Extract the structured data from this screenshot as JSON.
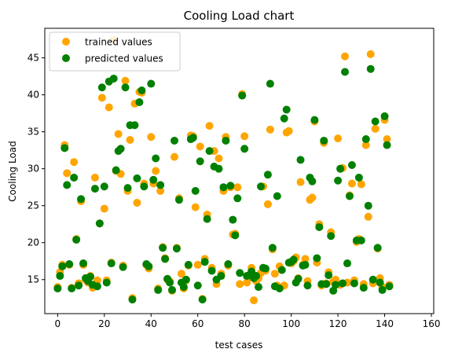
{
  "chart_data": {
    "type": "scatter",
    "title": "Cooling Load chart",
    "xlabel": "test cases",
    "ylabel": "Cooling Load",
    "xlim": [
      -5.5,
      161
    ],
    "ylim": [
      10.4,
      49
    ],
    "xticks": [
      0,
      20,
      40,
      60,
      80,
      100,
      120,
      140,
      160
    ],
    "yticks": [
      15,
      20,
      25,
      30,
      35,
      40,
      45
    ],
    "grid": false,
    "legend_position": "top-left",
    "series": [
      {
        "name": "trained values",
        "color": "#ffa500",
        "points": [
          [
            0,
            14.0
          ],
          [
            1,
            16.0
          ],
          [
            2,
            17.0
          ],
          [
            3,
            33.2
          ],
          [
            4,
            29.4
          ],
          [
            5,
            17.0
          ],
          [
            6,
            13.9
          ],
          [
            7,
            30.9
          ],
          [
            8,
            20.5
          ],
          [
            9,
            14.5
          ],
          [
            10,
            25.6
          ],
          [
            11,
            17.0
          ],
          [
            12,
            15.0
          ],
          [
            13,
            14.6
          ],
          [
            14,
            15.5
          ],
          [
            15,
            13.9
          ],
          [
            16,
            28.8
          ],
          [
            17,
            14.9
          ],
          [
            18,
            22.6
          ],
          [
            19,
            39.6
          ],
          [
            20,
            24.6
          ],
          [
            21,
            14.9
          ],
          [
            22,
            38.3
          ],
          [
            23,
            17.3
          ],
          [
            24,
            47.5
          ],
          [
            25,
            29.7
          ],
          [
            26,
            34.7
          ],
          [
            27,
            29.3
          ],
          [
            28,
            16.9
          ],
          [
            29,
            41.9
          ],
          [
            30,
            27.0
          ],
          [
            31,
            33.9
          ],
          [
            32,
            12.5
          ],
          [
            33,
            38.8
          ],
          [
            34,
            25.4
          ],
          [
            35,
            40.4
          ],
          [
            36,
            40.3
          ],
          [
            37,
            28.0
          ],
          [
            38,
            17.0
          ],
          [
            39,
            16.5
          ],
          [
            40,
            34.3
          ],
          [
            41,
            28.0
          ],
          [
            42,
            29.7
          ],
          [
            43,
            13.8
          ],
          [
            44,
            27.0
          ],
          [
            45,
            19.4
          ],
          [
            46,
            17.9
          ],
          [
            47,
            15.0
          ],
          [
            48,
            14.8
          ],
          [
            49,
            13.5
          ],
          [
            50,
            31.6
          ],
          [
            51,
            19.3
          ],
          [
            52,
            26.0
          ],
          [
            53,
            15.8
          ],
          [
            54,
            13.8
          ],
          [
            55,
            14.9
          ],
          [
            56,
            16.9
          ],
          [
            57,
            34.5
          ],
          [
            58,
            34.4
          ],
          [
            59,
            24.8
          ],
          [
            60,
            17.0
          ],
          [
            61,
            33.0
          ],
          [
            62,
            12.4
          ],
          [
            63,
            17.8
          ],
          [
            64,
            23.8
          ],
          [
            65,
            35.8
          ],
          [
            66,
            16.6
          ],
          [
            67,
            32.4
          ],
          [
            68,
            14.4
          ],
          [
            69,
            31.4
          ],
          [
            70,
            15.8
          ],
          [
            71,
            27.0
          ],
          [
            72,
            34.3
          ],
          [
            73,
            16.9
          ],
          [
            74,
            27.5
          ],
          [
            75,
            21.1
          ],
          [
            76,
            21.2
          ],
          [
            77,
            27.5
          ],
          [
            78,
            14.4
          ],
          [
            79,
            40.1
          ],
          [
            80,
            34.4
          ],
          [
            81,
            14.6
          ],
          [
            82,
            15.3
          ],
          [
            83,
            16.6
          ],
          [
            84,
            12.2
          ],
          [
            85,
            14.8
          ],
          [
            86,
            15.2
          ],
          [
            87,
            15.9
          ],
          [
            88,
            27.6
          ],
          [
            89,
            16.2
          ],
          [
            90,
            25.2
          ],
          [
            91,
            35.3
          ],
          [
            92,
            19.1
          ],
          [
            93,
            15.8
          ],
          [
            94,
            14.2
          ],
          [
            95,
            16.8
          ],
          [
            96,
            16.3
          ],
          [
            97,
            14.2
          ],
          [
            98,
            34.9
          ],
          [
            99,
            35.1
          ],
          [
            100,
            17.2
          ],
          [
            101,
            17.5
          ],
          [
            102,
            18.0
          ],
          [
            103,
            15.2
          ],
          [
            104,
            28.2
          ],
          [
            105,
            17.0
          ],
          [
            106,
            17.8
          ],
          [
            107,
            14.8
          ],
          [
            108,
            25.8
          ],
          [
            109,
            26.1
          ],
          [
            110,
            36.4
          ],
          [
            111,
            17.3
          ],
          [
            112,
            22.5
          ],
          [
            113,
            14.2
          ],
          [
            114,
            33.5
          ],
          [
            115,
            14.5
          ],
          [
            116,
            16.0
          ],
          [
            117,
            21.4
          ],
          [
            118,
            14.7
          ],
          [
            119,
            15.0
          ],
          [
            120,
            34.1
          ],
          [
            121,
            14.3
          ],
          [
            122,
            30.1
          ],
          [
            123,
            45.2
          ],
          [
            124,
            14.6
          ],
          [
            125,
            26.4
          ],
          [
            126,
            28.0
          ],
          [
            127,
            14.9
          ],
          [
            128,
            20.1
          ],
          [
            129,
            20.5
          ],
          [
            130,
            27.9
          ],
          [
            131,
            14.4
          ],
          [
            132,
            33.2
          ],
          [
            133,
            23.5
          ],
          [
            134,
            45.5
          ],
          [
            135,
            14.5
          ],
          [
            136,
            35.4
          ],
          [
            137,
            19.2
          ],
          [
            138,
            15.2
          ],
          [
            139,
            14.0
          ],
          [
            140,
            36.6
          ],
          [
            141,
            34.0
          ],
          [
            142,
            14.3
          ]
        ]
      },
      {
        "name": "predicted values",
        "color": "#008000",
        "points": [
          [
            0,
            13.8
          ],
          [
            1,
            15.5
          ],
          [
            2,
            16.8
          ],
          [
            3,
            32.8
          ],
          [
            4,
            27.8
          ],
          [
            5,
            17.1
          ],
          [
            6,
            13.8
          ],
          [
            7,
            28.8
          ],
          [
            8,
            20.4
          ],
          [
            9,
            14.2
          ],
          [
            10,
            25.9
          ],
          [
            11,
            17.2
          ],
          [
            12,
            15.2
          ],
          [
            13,
            14.8
          ],
          [
            14,
            15.4
          ],
          [
            15,
            14.3
          ],
          [
            16,
            27.3
          ],
          [
            17,
            14.1
          ],
          [
            18,
            22.6
          ],
          [
            19,
            41.0
          ],
          [
            20,
            27.6
          ],
          [
            21,
            14.6
          ],
          [
            22,
            41.8
          ],
          [
            23,
            17.2
          ],
          [
            24,
            42.2
          ],
          [
            25,
            29.8
          ],
          [
            26,
            32.4
          ],
          [
            27,
            32.7
          ],
          [
            28,
            16.7
          ],
          [
            29,
            41.0
          ],
          [
            30,
            27.4
          ],
          [
            31,
            35.9
          ],
          [
            32,
            12.3
          ],
          [
            33,
            35.9
          ],
          [
            34,
            28.7
          ],
          [
            35,
            39.0
          ],
          [
            36,
            40.6
          ],
          [
            37,
            27.6
          ],
          [
            38,
            17.1
          ],
          [
            39,
            16.8
          ],
          [
            40,
            41.5
          ],
          [
            41,
            28.5
          ],
          [
            42,
            31.4
          ],
          [
            43,
            13.6
          ],
          [
            44,
            27.8
          ],
          [
            45,
            19.3
          ],
          [
            46,
            17.8
          ],
          [
            47,
            15.1
          ],
          [
            48,
            14.6
          ],
          [
            49,
            13.6
          ],
          [
            50,
            33.8
          ],
          [
            51,
            19.2
          ],
          [
            52,
            25.8
          ],
          [
            53,
            14.6
          ],
          [
            54,
            14.0
          ],
          [
            55,
            15.0
          ],
          [
            56,
            17.0
          ],
          [
            57,
            34.0
          ],
          [
            58,
            34.2
          ],
          [
            59,
            27.0
          ],
          [
            60,
            14.2
          ],
          [
            61,
            31.0
          ],
          [
            62,
            12.3
          ],
          [
            63,
            17.4
          ],
          [
            64,
            23.2
          ],
          [
            65,
            32.4
          ],
          [
            66,
            16.2
          ],
          [
            67,
            30.3
          ],
          [
            68,
            15.0
          ],
          [
            69,
            30.0
          ],
          [
            70,
            15.5
          ],
          [
            71,
            27.5
          ],
          [
            72,
            33.8
          ],
          [
            73,
            17.1
          ],
          [
            74,
            27.7
          ],
          [
            75,
            23.1
          ],
          [
            76,
            21.0
          ],
          [
            77,
            26.0
          ],
          [
            78,
            15.9
          ],
          [
            79,
            39.9
          ],
          [
            80,
            32.7
          ],
          [
            81,
            15.5
          ],
          [
            82,
            15.6
          ],
          [
            83,
            16.1
          ],
          [
            84,
            15.2
          ],
          [
            85,
            15.5
          ],
          [
            86,
            14.0
          ],
          [
            87,
            27.6
          ],
          [
            88,
            16.6
          ],
          [
            89,
            16.5
          ],
          [
            90,
            29.2
          ],
          [
            91,
            41.5
          ],
          [
            92,
            19.3
          ],
          [
            93,
            14.1
          ],
          [
            94,
            26.3
          ],
          [
            95,
            13.8
          ],
          [
            96,
            16.3
          ],
          [
            97,
            36.8
          ],
          [
            98,
            38.0
          ],
          [
            99,
            17.3
          ],
          [
            100,
            17.4
          ],
          [
            101,
            17.7
          ],
          [
            102,
            14.6
          ],
          [
            103,
            15.1
          ],
          [
            104,
            31.2
          ],
          [
            105,
            16.9
          ],
          [
            106,
            17.0
          ],
          [
            107,
            14.2
          ],
          [
            108,
            28.8
          ],
          [
            109,
            28.3
          ],
          [
            110,
            36.6
          ],
          [
            111,
            17.9
          ],
          [
            112,
            22.1
          ],
          [
            113,
            14.4
          ],
          [
            114,
            33.8
          ],
          [
            115,
            14.4
          ],
          [
            116,
            15.6
          ],
          [
            117,
            20.9
          ],
          [
            118,
            13.5
          ],
          [
            119,
            14.3
          ],
          [
            120,
            28.4
          ],
          [
            121,
            30.0
          ],
          [
            122,
            14.5
          ],
          [
            123,
            43.1
          ],
          [
            124,
            17.2
          ],
          [
            125,
            26.3
          ],
          [
            126,
            30.5
          ],
          [
            127,
            14.5
          ],
          [
            128,
            20.3
          ],
          [
            129,
            28.8
          ],
          [
            130,
            20.3
          ],
          [
            131,
            13.9
          ],
          [
            132,
            34.0
          ],
          [
            133,
            25.0
          ],
          [
            134,
            43.5
          ],
          [
            135,
            15.0
          ],
          [
            136,
            36.4
          ],
          [
            137,
            19.3
          ],
          [
            138,
            14.6
          ],
          [
            139,
            13.6
          ],
          [
            140,
            37.1
          ],
          [
            141,
            33.2
          ],
          [
            142,
            14.1
          ]
        ]
      }
    ]
  }
}
